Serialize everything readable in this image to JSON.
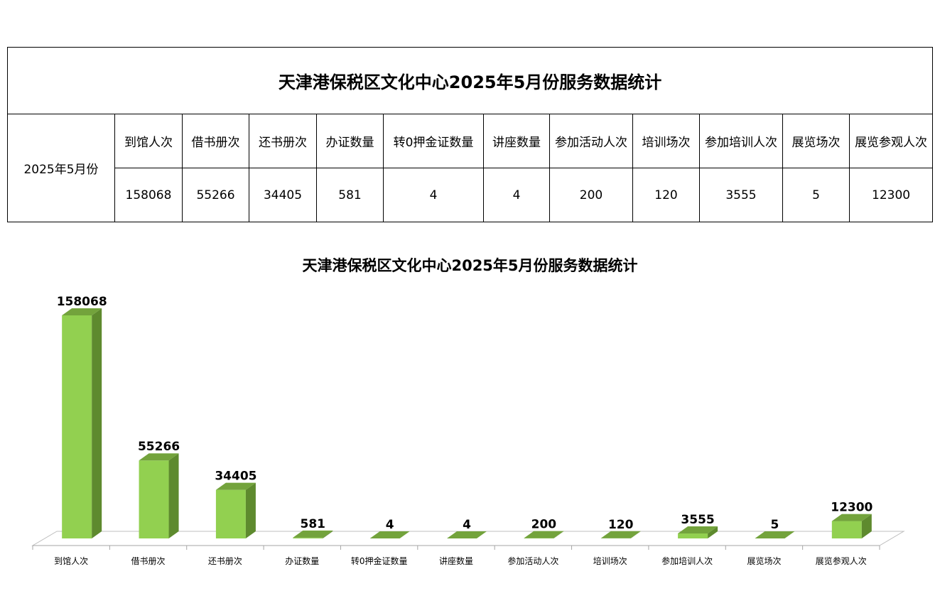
{
  "table": {
    "title": "天津港保税区文化中心2025年5月份服务数据统计",
    "period": "2025年5月份",
    "headers": [
      "到馆人次",
      "借书册次",
      "还书册次",
      "办证数量",
      "转0押金证数量",
      "讲座数量",
      "参加活动人次",
      "培训场次",
      "参加培训人次",
      "展览场次",
      "展览参观人次"
    ],
    "values": [
      "158068",
      "55266",
      "34405",
      "581",
      "4",
      "4",
      "200",
      "120",
      "3555",
      "5",
      "12300"
    ]
  },
  "chart_data": {
    "type": "bar",
    "title": "天津港保税区文化中心2025年5月份服务数据统计",
    "categories": [
      "到馆人次",
      "借书册次",
      "还书册次",
      "办证数量",
      "转0押金证数量",
      "讲座数量",
      "参加活动人次",
      "培训场次",
      "参加培训人次",
      "展览场次",
      "展览参观人次"
    ],
    "values": [
      158068,
      55266,
      34405,
      581,
      4,
      4,
      200,
      120,
      3555,
      5,
      12300
    ],
    "data_labels": true,
    "legend": "none",
    "grid": false,
    "style": "3d-column",
    "colors": {
      "front": "#92d050",
      "side": "#5e8a2e",
      "top": "#73a33c",
      "floor": "#bfbfbf"
    }
  }
}
